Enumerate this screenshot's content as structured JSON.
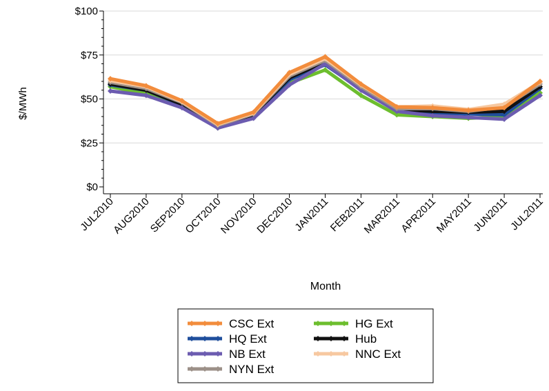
{
  "chart_data": {
    "type": "line",
    "title": "",
    "xlabel": "Month",
    "ylabel": "$/MWh",
    "categories": [
      "JUL2010",
      "AUG2010",
      "SEP2010",
      "OCT2010",
      "NOV2010",
      "DEC2010",
      "JAN2011",
      "FEB2011",
      "MAR2011",
      "APR2011",
      "MAY2011",
      "JUN2011",
      "JUL2011"
    ],
    "ylim": [
      0,
      100
    ],
    "yticks": [
      0,
      25,
      50,
      75,
      100
    ],
    "ytick_labels": [
      "$0",
      "$25",
      "$50",
      "$75",
      "$100"
    ],
    "grid": "horizontal",
    "legend_position": "bottom",
    "series": [
      {
        "name": "CSC Ext",
        "color": "#F28C3C",
        "values": [
          61.5,
          57.5,
          49,
          36,
          42.5,
          65,
          74,
          58.5,
          45.5,
          45,
          43.5,
          45,
          60
        ]
      },
      {
        "name": "HG Ext",
        "color": "#6DBE2E",
        "values": [
          57,
          53,
          46,
          33.5,
          39.5,
          59,
          66.5,
          52,
          41,
          40,
          39,
          40,
          53.5
        ]
      },
      {
        "name": "HQ Ext",
        "color": "#1F4E9C",
        "values": [
          58,
          55,
          46.5,
          34.5,
          40.5,
          61,
          69.5,
          55.5,
          44,
          42,
          41.5,
          41,
          56
        ]
      },
      {
        "name": "Hub",
        "color": "#111111",
        "values": [
          58.5,
          55,
          47,
          35,
          41,
          62,
          71,
          56,
          44,
          43,
          42.5,
          43,
          57
        ]
      },
      {
        "name": "NB Ext",
        "color": "#6C5CB0",
        "values": [
          54.5,
          52,
          45,
          33.5,
          39,
          58,
          70,
          55,
          43,
          40.5,
          39.5,
          38.5,
          52
        ]
      },
      {
        "name": "NNC Ext",
        "color": "#F7C8A0",
        "values": [
          60.5,
          57,
          48.5,
          35.5,
          42,
          64,
          73,
          58,
          45.5,
          46,
          44,
          47,
          59.5
        ]
      },
      {
        "name": "NYN Ext",
        "color": "#9C9088",
        "values": [
          59.5,
          56,
          48,
          35,
          41.5,
          63,
          72,
          57,
          44.5,
          44.5,
          43,
          45.5,
          58.5
        ]
      }
    ],
    "draw_order": [
      1,
      2,
      3,
      4,
      6,
      5,
      0
    ],
    "legend_columns": [
      [
        0,
        2,
        4,
        6
      ],
      [
        1,
        3,
        5
      ]
    ]
  }
}
